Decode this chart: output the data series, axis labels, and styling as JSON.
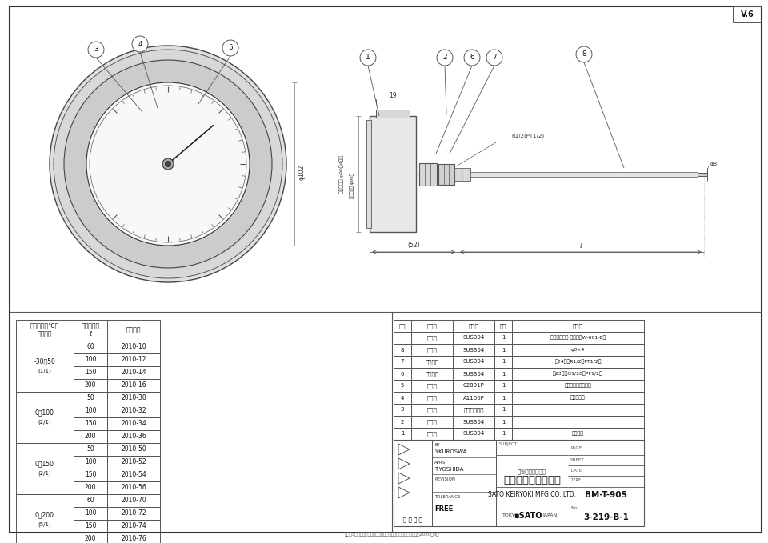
{
  "bg_color": "#ffffff",
  "border_color": "#555555",
  "line_color": "#555555",
  "title": "バイメタル式温度計",
  "drawing_number": "3-219-B-1",
  "type_number": "BM-T-90S",
  "company": "SATO KEIRYOKI MFG.CO.,LTD.",
  "version": "V.6",
  "footer_note": "出荷後3ヵ月期間を過ぎた為予告なく変更することがあります。2020年8月",
  "parts_table": {
    "headers": [
      "番号",
      "品　名",
      "材　質",
      "個数",
      "記　事"
    ],
    "rows": [
      [
        "",
        "程護管",
        "SUS304",
        "1",
        "（オプション 図面番号W-001-B）"
      ],
      [
        "8",
        "感温部",
        "SUS304",
        "1",
        "φ8×4"
      ],
      [
        "7",
        "取付ネジ",
        "SUS304",
        "1",
        "帡24六角R1/2（PT1/2）"
      ],
      [
        "6",
        "締付ネジ",
        "SUS304",
        "1",
        "帡23六角G1/28（PF1/2）"
      ],
      [
        "5",
        "指　針",
        "C2801P",
        "1",
        "黒　色　先端部橙色"
      ],
      [
        "4",
        "目盛板",
        "A1100P",
        "1",
        "白地黒文字"
      ],
      [
        "3",
        "透明板",
        "普通板ガラス",
        "1",
        ""
      ],
      [
        "2",
        "ケース",
        "SUS304",
        "1",
        ""
      ],
      [
        "1",
        "フ　タ",
        "SUS304",
        "1",
        "バフ研磨"
      ]
    ]
  },
  "spec_table": {
    "groups": [
      {
        "range": "-30～50",
        "scale": "(1/1)",
        "items": [
          {
            "length": "60",
            "number": "2010-10"
          },
          {
            "length": "100",
            "number": "2010-12"
          },
          {
            "length": "150",
            "number": "2010-14"
          },
          {
            "length": "200",
            "number": "2010-16"
          }
        ]
      },
      {
        "range": "0～100",
        "scale": "(2/1)",
        "items": [
          {
            "length": "50",
            "number": "2010-30"
          },
          {
            "length": "100",
            "number": "2010-32"
          },
          {
            "length": "150",
            "number": "2010-34"
          },
          {
            "length": "200",
            "number": "2010-36"
          }
        ]
      },
      {
        "range": "0～150",
        "scale": "(2/1)",
        "items": [
          {
            "length": "50",
            "number": "2010-50"
          },
          {
            "length": "100",
            "number": "2010-52"
          },
          {
            "length": "150",
            "number": "2010-54"
          },
          {
            "length": "200",
            "number": "2010-56"
          }
        ]
      },
      {
        "range": "0～200",
        "scale": "(5/1)",
        "items": [
          {
            "length": "60",
            "number": "2010-70"
          },
          {
            "length": "100",
            "number": "2010-72"
          },
          {
            "length": "150",
            "number": "2010-74"
          },
          {
            "length": "200",
            "number": "2010-76"
          }
        ]
      }
    ]
  },
  "title_block": {
    "by": "Y.KUROSWA",
    "aprs": "T.YOSHIDA",
    "tolerance": "FREE"
  }
}
